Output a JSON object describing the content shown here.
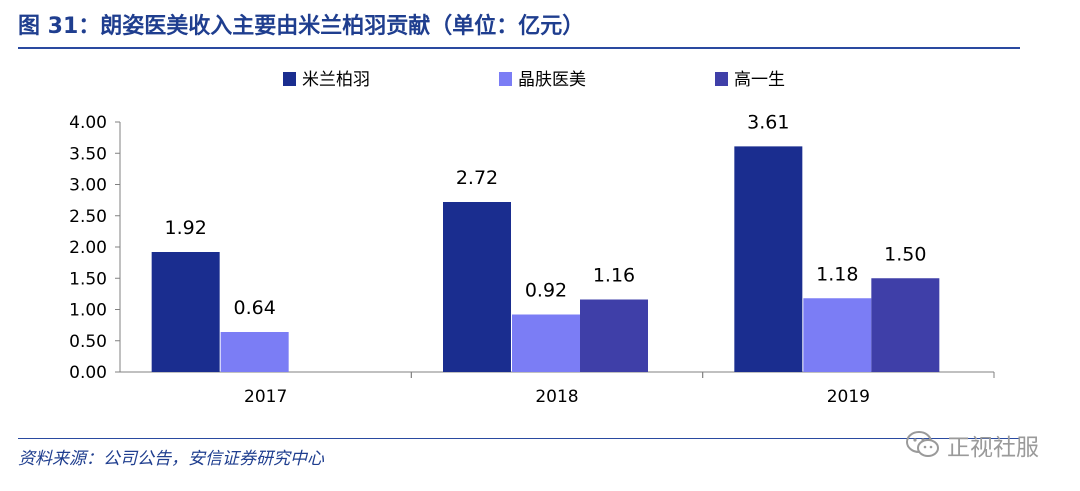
{
  "title": "图 31：朗姿医美收入主要由米兰柏羽贡献（单位：亿元）",
  "source": "资料来源：公司公告，安信证券研究中心",
  "watermark": "正视社服",
  "watermark_icon": "wechat-icon",
  "chart_data": {
    "type": "bar",
    "categories": [
      "2017",
      "2018",
      "2019"
    ],
    "series": [
      {
        "name": "米兰柏羽",
        "color": "#1a2d8f",
        "values": [
          1.92,
          2.72,
          3.61
        ]
      },
      {
        "name": "晶肤医美",
        "color": "#7b7df5",
        "values": [
          0.64,
          0.92,
          1.18
        ]
      },
      {
        "name": "高一生",
        "color": "#3f3fa8",
        "values": [
          null,
          1.16,
          1.5
        ]
      }
    ],
    "ylim": [
      0,
      4
    ],
    "yticks": [
      "0.00",
      "0.50",
      "1.00",
      "1.50",
      "2.00",
      "2.50",
      "3.00",
      "3.50",
      "4.00"
    ],
    "data_labels": [
      [
        "1.92",
        "2.72",
        "3.61"
      ],
      [
        "0.64",
        "0.92",
        "1.18"
      ],
      [
        null,
        "1.16",
        "1.50"
      ]
    ],
    "legend_position": "top",
    "grid": false
  }
}
